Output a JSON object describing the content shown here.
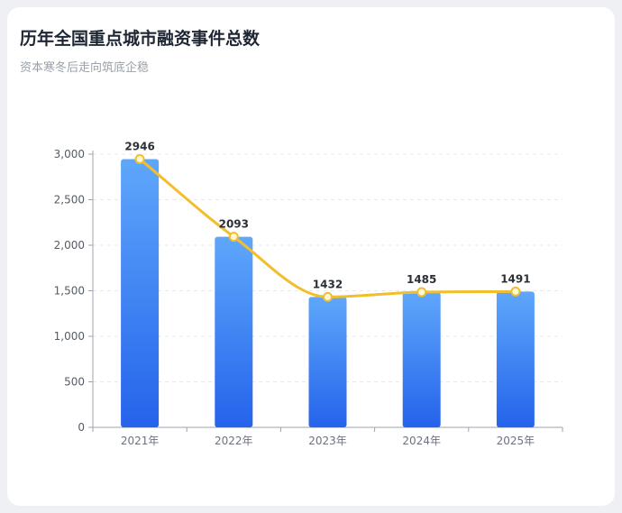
{
  "header": {
    "title": "历年全国重点城市融资事件总数",
    "subtitle": "资本寒冬后走向筑底企稳"
  },
  "chart_data": {
    "type": "bar",
    "categories": [
      "2021年",
      "2022年",
      "2023年",
      "2024年",
      "2025年"
    ],
    "series": [
      {
        "type": "bar",
        "values": [
          2946,
          2093,
          1432,
          1485,
          1491
        ]
      },
      {
        "type": "line",
        "values": [
          2946,
          2093,
          1432,
          1485,
          1491
        ]
      }
    ],
    "data_labels": [
      "2946",
      "2093",
      "1432",
      "1485",
      "1491"
    ],
    "y_ticks": [
      "0",
      "500",
      "1,000",
      "1,500",
      "2,000",
      "2,500",
      "3,000"
    ],
    "ylim": [
      0,
      3000
    ],
    "grid": true,
    "legend": "none",
    "colors": {
      "bar_top": "#5ea7fb",
      "bar_bottom": "#2563eb",
      "line": "#f2bf2c",
      "marker_fill": "#fff8d6"
    }
  }
}
